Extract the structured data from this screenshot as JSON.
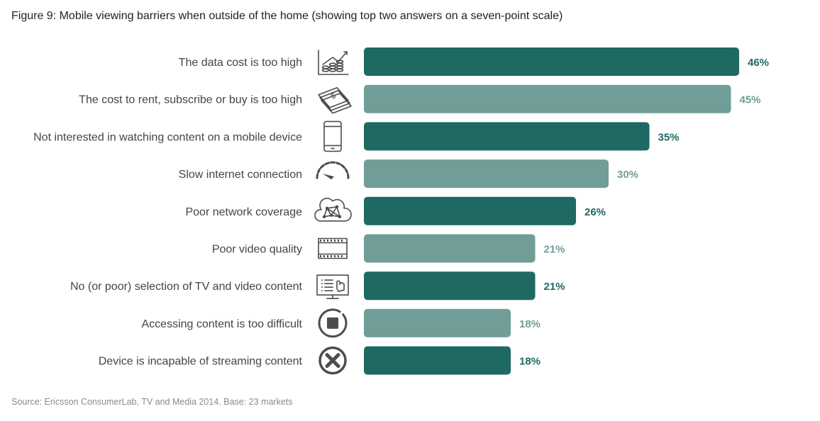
{
  "title": "Figure 9: Mobile viewing barriers when outside of the home (showing top two answers on a seven-point scale)",
  "source": "Source: Ericsson ConsumerLab, TV and Media 2014. Base: 23 markets",
  "colors": {
    "dark": "#1f6963",
    "light": "#719d99"
  },
  "chart_data": {
    "type": "bar",
    "orientation": "horizontal",
    "title": "Figure 9: Mobile viewing barriers when outside of the home (showing top two answers on a seven-point scale)",
    "categories": [
      "The data cost is too high",
      "The cost to rent, subscribe or buy is too high",
      "Not interested in watching content on a mobile device",
      "Slow internet connection",
      "Poor network coverage",
      "Poor video quality",
      "No (or poor) selection of TV and video content",
      "Accessing content is too difficult",
      "Device is incapable of streaming content"
    ],
    "values": [
      46,
      45,
      35,
      30,
      26,
      21,
      21,
      18,
      18
    ],
    "value_labels": [
      "46%",
      "45%",
      "35%",
      "30%",
      "26%",
      "21%",
      "21%",
      "18%",
      "18%"
    ],
    "icons": [
      "coin-stacks-icon",
      "banknotes-icon",
      "smartphone-icon",
      "speedometer-icon",
      "network-cloud-icon",
      "film-strip-icon",
      "tv-screen-icon",
      "stop-button-icon",
      "x-circle-icon"
    ],
    "bar_shades": [
      "dark",
      "light",
      "dark",
      "light",
      "dark",
      "light",
      "dark",
      "light",
      "dark"
    ],
    "xlim": [
      0,
      46
    ],
    "grid": false,
    "legend": "none"
  }
}
